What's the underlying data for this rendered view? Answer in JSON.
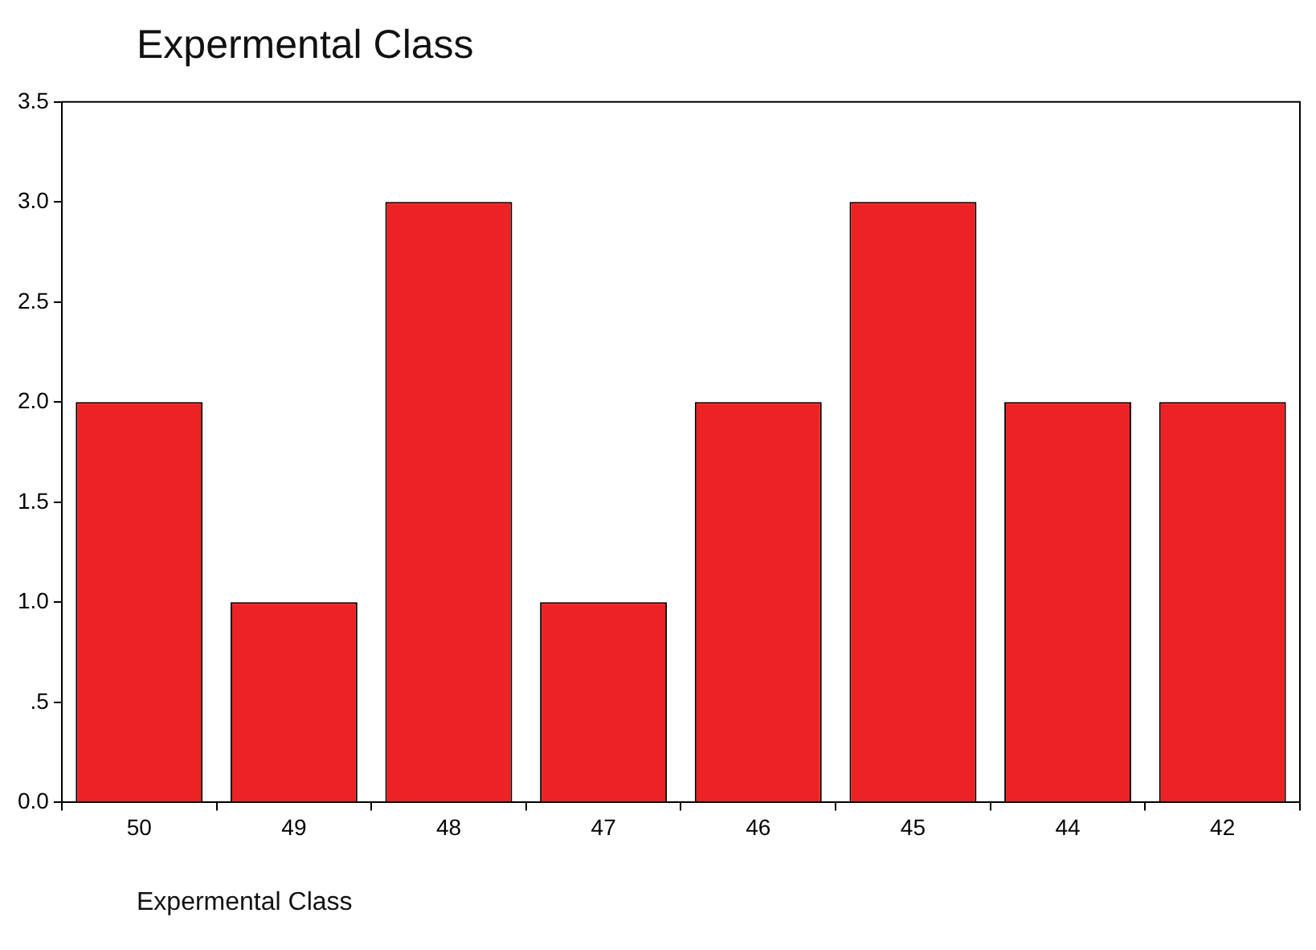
{
  "chart_data": {
    "type": "bar",
    "title": "Expermental Class",
    "xlabel": "Expermental Class",
    "categories": [
      "50",
      "49",
      "48",
      "47",
      "46",
      "45",
      "44",
      "42"
    ],
    "values": [
      2,
      1,
      3,
      1,
      2,
      3,
      2,
      2
    ],
    "color": "#ed2224",
    "ylim": [
      0,
      3.5
    ],
    "yticks": [
      {
        "value": 0,
        "label": "0.0"
      },
      {
        "value": 0.5,
        "label": ".5"
      },
      {
        "value": 1,
        "label": "1.0"
      },
      {
        "value": 1.5,
        "label": "1.5"
      },
      {
        "value": 2,
        "label": "2.0"
      },
      {
        "value": 2.5,
        "label": "2.5"
      },
      {
        "value": 3,
        "label": "3.0"
      },
      {
        "value": 3.5,
        "label": "3.5"
      }
    ],
    "grid": false,
    "legend": false
  }
}
